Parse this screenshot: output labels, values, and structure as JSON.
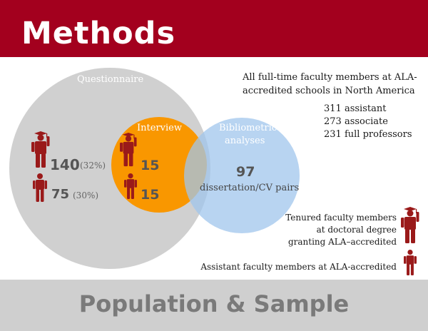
{
  "header": {
    "title": "Methods"
  },
  "footer": {
    "title": "Population & Sample"
  },
  "circles": {
    "questionnaire": {
      "label": "Questionnaire"
    },
    "interview": {
      "label": "Interview"
    },
    "bibliometric": {
      "label_line1": "Bibliometric",
      "label_line2": "analyses"
    }
  },
  "questionnaire_stats": {
    "tenured_count": "140",
    "tenured_pct": "(32%)",
    "assistant_count": "75",
    "assistant_pct": "(30%)"
  },
  "interview_stats": {
    "tenured_count": "15",
    "assistant_count": "15"
  },
  "bibliometric_stats": {
    "count": "97",
    "desc": "dissertation/CV pairs"
  },
  "population": {
    "line1": "All full-time faculty members at ALA-",
    "line2": "accredited schools in North America",
    "ranks": [
      "311 assistant",
      "273 associate",
      "231 full professors"
    ]
  },
  "legend": {
    "tenured_line1": "Tenured faculty members",
    "tenured_line2": "at doctoral degree",
    "tenured_line3": "granting ALA–accredited",
    "assistant": "Assistant faculty members at ALA-accredited"
  },
  "colors": {
    "header_red": "#a3001e",
    "icon_red": "#9a1a1a",
    "interview_orange": "#f99700",
    "bibliometric_blue": "#a0c5ec",
    "questionnaire_gray": "#c8c8c8",
    "footer_gray": "#cfcfcf"
  },
  "icons": {
    "tenured": "graduate-cap-person-icon",
    "assistant": "person-icon"
  }
}
